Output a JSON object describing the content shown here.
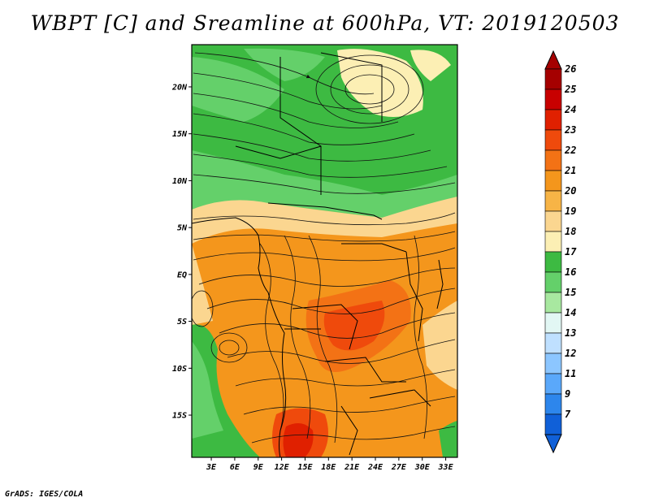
{
  "title": "WBPT [C] and Sreamline at 600hPa, VT: 2019120503",
  "credit": "GrADS: IGES/COLA",
  "map": {
    "variable": "WBPT",
    "units": "C",
    "level": "600hPa",
    "valid_time": "2019120503",
    "lat_ticks": [
      "20N",
      "15N",
      "10N",
      "5N",
      "EQ",
      "5S",
      "10S",
      "15S"
    ],
    "lat_values": [
      20,
      15,
      10,
      5,
      0,
      -5,
      -10,
      -15
    ],
    "lon_ticks": [
      "3E",
      "6E",
      "9E",
      "12E",
      "15E",
      "18E",
      "21E",
      "24E",
      "27E",
      "30E",
      "33E"
    ],
    "lon_values": [
      3,
      6,
      9,
      12,
      15,
      18,
      21,
      24,
      27,
      30,
      33
    ],
    "lat_range": [
      -19.5,
      24.5
    ],
    "lon_range": [
      0.5,
      34.5
    ]
  },
  "colorbar": {
    "labels": [
      "26",
      "25",
      "24",
      "23",
      "22",
      "21",
      "20",
      "19",
      "18",
      "17",
      "16",
      "15",
      "14",
      "13",
      "12",
      "11",
      "9",
      "7"
    ],
    "colors": [
      "#a50000",
      "#c80000",
      "#e02000",
      "#ef4a0c",
      "#f37215",
      "#f4961c",
      "#f7b446",
      "#fbd690",
      "#fcefb4",
      "#3dba42",
      "#64d06a",
      "#a8e8a0",
      "#e2f7f4",
      "#bfe0ff",
      "#8cc6ff",
      "#5aa8fa",
      "#2d86ec",
      "#1060d8"
    ]
  }
}
